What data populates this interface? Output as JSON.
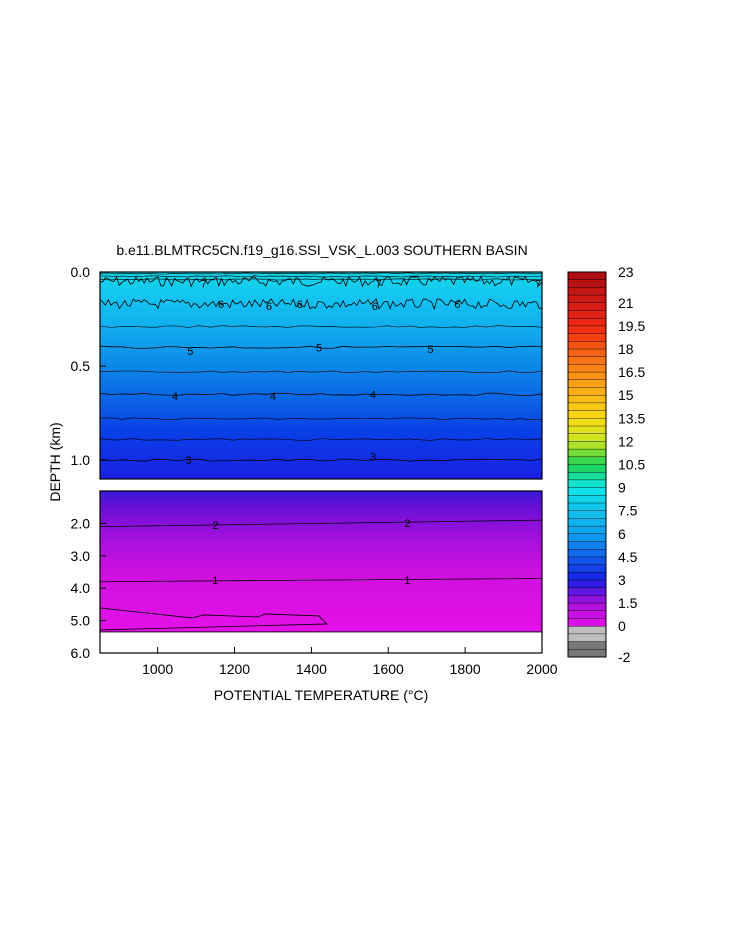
{
  "chart_data": {
    "type": "heatmap",
    "title": "b.e11.BLMTRC5CN.f19_g16.SSI_VSK_L.003 SOUTHERN BASIN",
    "xlabel": "POTENTIAL TEMPERATURE (°C)",
    "ylabel": "DEPTH (km)",
    "x_range": [
      850,
      2000
    ],
    "x_ticks": [
      "1000",
      "1200",
      "1400",
      "1600",
      "1800",
      "2000"
    ],
    "upper_panel": {
      "depth_range_km": [
        0.0,
        1.1
      ],
      "y_ticks": [
        "0.0",
        "0.5",
        "1.0"
      ],
      "contour_lines": [
        {
          "level": 7,
          "depth_km": 0.05
        },
        {
          "level": 6,
          "depth_km": 0.17
        },
        {
          "level": 5,
          "depth_km": 0.4
        },
        {
          "level": 4,
          "depth_km": 0.65
        },
        {
          "level": 3,
          "depth_km": 1.0
        }
      ],
      "contour_labels": [
        {
          "text": "7",
          "x": 1120,
          "depth_km": 0.06
        },
        {
          "text": "7",
          "x": 1575,
          "depth_km": 0.06
        },
        {
          "text": "7",
          "x": 1990,
          "depth_km": 0.06
        },
        {
          "text": "6",
          "x": 1165,
          "depth_km": 0.17
        },
        {
          "text": "6",
          "x": 1290,
          "depth_km": 0.18
        },
        {
          "text": "6",
          "x": 1370,
          "depth_km": 0.17
        },
        {
          "text": "6",
          "x": 1565,
          "depth_km": 0.18
        },
        {
          "text": "6",
          "x": 1780,
          "depth_km": 0.17
        },
        {
          "text": "5",
          "x": 1085,
          "depth_km": 0.42
        },
        {
          "text": "5",
          "x": 1420,
          "depth_km": 0.4
        },
        {
          "text": "5",
          "x": 1710,
          "depth_km": 0.41
        },
        {
          "text": "4",
          "x": 1045,
          "depth_km": 0.66
        },
        {
          "text": "4",
          "x": 1300,
          "depth_km": 0.66
        },
        {
          "text": "4",
          "x": 1560,
          "depth_km": 0.65
        },
        {
          "text": "3",
          "x": 1080,
          "depth_km": 1.0
        },
        {
          "text": "3",
          "x": 1560,
          "depth_km": 0.98
        }
      ]
    },
    "lower_panel": {
      "depth_range_km": [
        1.0,
        6.0
      ],
      "y_ticks": [
        "2.0",
        "3.0",
        "4.0",
        "5.0",
        "6.0"
      ],
      "bottom_depth_km": 5.35,
      "contour_lines": [
        {
          "level": 2,
          "depth_km_left": 2.1,
          "depth_km_right": 1.9
        },
        {
          "level": 1,
          "depth_km_left": 3.8,
          "depth_km_right": 3.7
        }
      ],
      "contour_labels": [
        {
          "text": "2",
          "x": 1150,
          "depth_km": 2.05
        },
        {
          "text": "2",
          "x": 1650,
          "depth_km": 1.98
        },
        {
          "text": "1",
          "x": 1150,
          "depth_km": 3.75
        },
        {
          "text": "1",
          "x": 1650,
          "depth_km": 3.75
        }
      ]
    },
    "colorbar": {
      "labels": [
        "23",
        "21",
        "19.5",
        "18",
        "16.5",
        "15",
        "13.5",
        "12",
        "10.5",
        "9",
        "7.5",
        "6",
        "4.5",
        "3",
        "1.5",
        "0",
        "-2"
      ]
    }
  }
}
